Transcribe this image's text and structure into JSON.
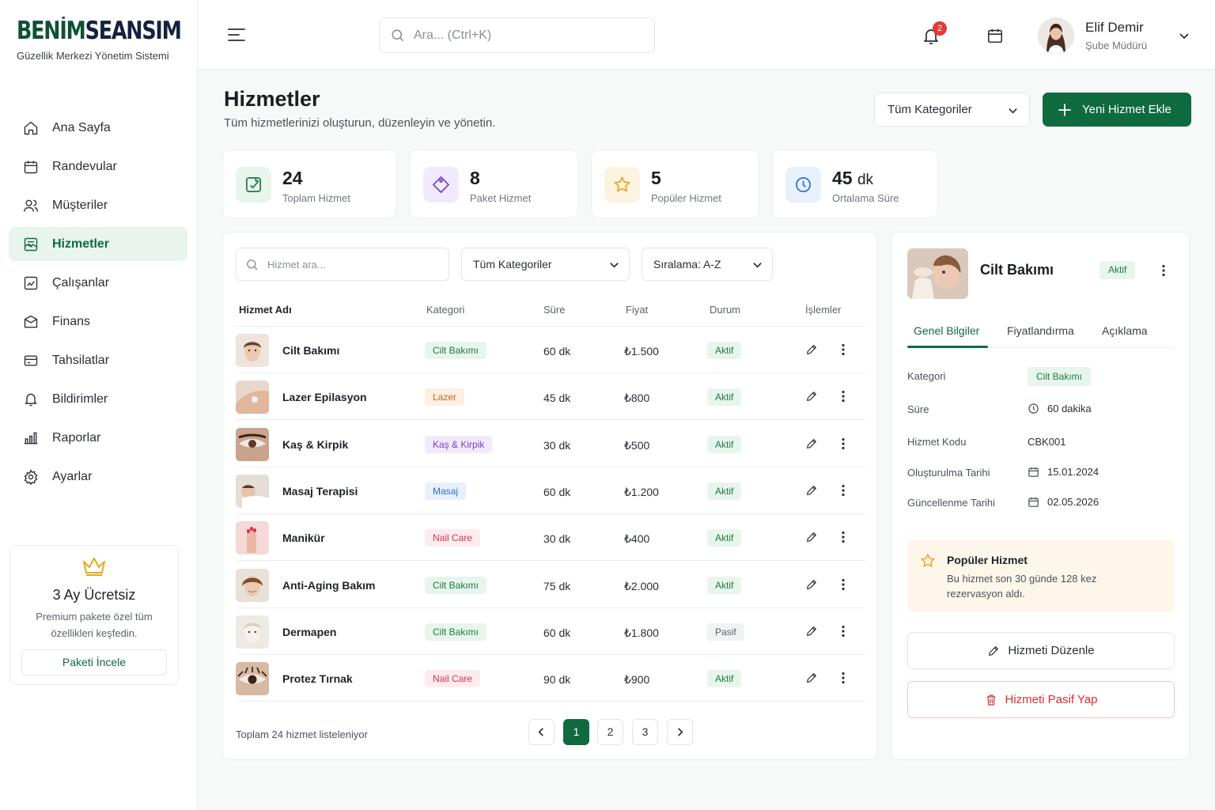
{
  "brand": {
    "name_part1": "BENİM",
    "name_part2": "SEANSIM",
    "subtitle": "Güzellik Merkezi Yönetim Sistemi"
  },
  "sidebar": {
    "items": [
      {
        "label": "Ana Sayfa",
        "icon": "home-icon"
      },
      {
        "label": "Randevular",
        "icon": "calendar-icon"
      },
      {
        "label": "Müşteriler",
        "icon": "users-icon"
      },
      {
        "label": "Hizmetler",
        "icon": "services-icon",
        "active": true
      },
      {
        "label": "Çalışanlar",
        "icon": "staff-icon"
      },
      {
        "label": "Finans",
        "icon": "wallet-icon"
      },
      {
        "label": "Tahsilatlar",
        "icon": "card-icon"
      },
      {
        "label": "Bildirimler",
        "icon": "bell-icon"
      },
      {
        "label": "Raporlar",
        "icon": "chart-icon"
      },
      {
        "label": "Ayarlar",
        "icon": "gear-icon"
      }
    ],
    "promo": {
      "title": "3 Ay Ücretsiz",
      "text": "Premium pakete özel tüm özellikleri keşfedin.",
      "button": "Paketi İncele"
    }
  },
  "header": {
    "search_placeholder": "Ara... (Ctrl+K)",
    "notification_count": "2",
    "user": {
      "name": "Elif Demir",
      "role": "Şube Müdürü"
    }
  },
  "page": {
    "title": "Hizmetler",
    "subtitle": "Tüm hizmetlerinizi oluşturun, düzenleyin ve yönetin.",
    "category_filter": "Tüm Kategoriler",
    "add_button": "Yeni Hizmet Ekle"
  },
  "stats": [
    {
      "value": "24",
      "unit": "",
      "label": "Toplam Hizmet",
      "icon": "service-icon",
      "color": "#1f7a45",
      "bg": "#e8f5ed"
    },
    {
      "value": "8",
      "unit": "",
      "label": "Paket Hizmet",
      "icon": "tag-icon",
      "color": "#7b3fd1",
      "bg": "#f1eafb"
    },
    {
      "value": "5",
      "unit": "",
      "label": "Popüler Hizmet",
      "icon": "star-icon",
      "color": "#e7a91c",
      "bg": "#fdf3e1"
    },
    {
      "value": "45",
      "unit": "dk",
      "label": "Ortalama Süre",
      "icon": "clock-icon",
      "color": "#2b6fd6",
      "bg": "#e8f0fc"
    }
  ],
  "table": {
    "search_placeholder": "Hizmet ara...",
    "category_filter": "Tüm Kategoriler",
    "sort": "Sıralama: A-Z",
    "columns": [
      "Hizmet Adı",
      "Kategori",
      "Süre",
      "Fiyat",
      "Durum",
      "İşlemler"
    ],
    "rows": [
      {
        "name": "Cilt Bakımı",
        "category": "Cilt Bakımı",
        "duration": "60 dk",
        "price": "₺1.500",
        "status": "Aktif"
      },
      {
        "name": "Lazer Epilasyon",
        "category": "Lazer",
        "duration": "45 dk",
        "price": "₺800",
        "status": "Aktif"
      },
      {
        "name": "Kaş & Kirpik",
        "category": "Kaş & Kirpik",
        "duration": "30 dk",
        "price": "₺500",
        "status": "Aktif"
      },
      {
        "name": "Masaj Terapisi",
        "category": "Masaj",
        "duration": "60 dk",
        "price": "₺1.200",
        "status": "Aktif"
      },
      {
        "name": "Manikür",
        "category": "Nail Care",
        "duration": "30 dk",
        "price": "₺400",
        "status": "Aktif"
      },
      {
        "name": "Anti-Aging Bakım",
        "category": "Cilt Bakımı",
        "duration": "75 dk",
        "price": "₺2.000",
        "status": "Aktif"
      },
      {
        "name": "Dermapen",
        "category": "Cilt Bakımı",
        "duration": "60 dk",
        "price": "₺1.800",
        "status": "Pasif"
      },
      {
        "name": "Protez Tırnak",
        "category": "Nail Care",
        "duration": "90 dk",
        "price": "₺900",
        "status": "Aktif"
      }
    ],
    "footer": "Toplam 24 hizmet listeleniyor",
    "pages": [
      "1",
      "2",
      "3"
    ],
    "current_page": "1"
  },
  "category_colors": {
    "Cilt Bakımı": {
      "bg": "#e8f5ed",
      "fg": "#1f7a45"
    },
    "Lazer": {
      "bg": "#fdf0e2",
      "fg": "#c2691a"
    },
    "Kaş & Kirpik": {
      "bg": "#f1eafb",
      "fg": "#7b3fd1"
    },
    "Masaj": {
      "bg": "#e8f0fc",
      "fg": "#2b6fd6"
    },
    "Nail Care": {
      "bg": "#fdecee",
      "fg": "#d6334a"
    }
  },
  "detail": {
    "title": "Cilt Bakımı",
    "status": "Aktif",
    "tabs": [
      "Genel Bilgiler",
      "Fiyatlandırma",
      "Açıklama"
    ],
    "fields": {
      "category_label": "Kategori",
      "category_value": "Cilt Bakımı",
      "duration_label": "Süre",
      "duration_value": "60 dakika",
      "code_label": "Hizmet Kodu",
      "code_value": "CBK001",
      "created_label": "Oluşturulma Tarihi",
      "created_value": "15.01.2024",
      "updated_label": "Güncellenme Tarihi",
      "updated_value": "02.05.2026"
    },
    "popular": {
      "title": "Popüler Hizmet",
      "text": "Bu hizmet son 30 günde 128 kez rezervasyon aldı."
    },
    "edit_button": "Hizmeti Düzenle",
    "deactivate_button": "Hizmeti Pasif Yap"
  }
}
